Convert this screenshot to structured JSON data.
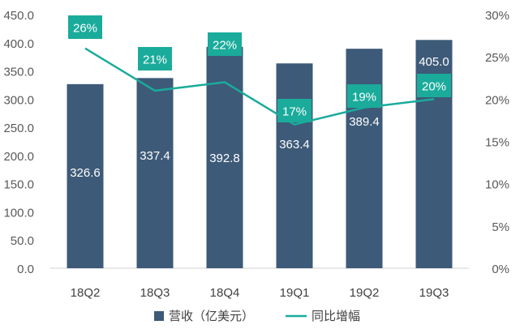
{
  "chart_data": {
    "type": "bar",
    "categories": [
      "18Q2",
      "18Q3",
      "18Q4",
      "19Q1",
      "19Q2",
      "19Q3"
    ],
    "series": [
      {
        "name": "营收（亿美元）",
        "type": "bar",
        "axis": "left",
        "color": "#3d5a78",
        "values": [
          326.6,
          337.4,
          392.8,
          363.4,
          389.4,
          405.0
        ],
        "labels": [
          "326.6",
          "337.4",
          "392.8",
          "363.4",
          "389.4",
          "405.0"
        ]
      },
      {
        "name": "同比增幅",
        "type": "line",
        "axis": "right",
        "color": "#1aab9b",
        "values": [
          26,
          21,
          22,
          17,
          19,
          20
        ],
        "labels": [
          "26%",
          "21%",
          "22%",
          "17%",
          "19%",
          "20%"
        ]
      }
    ],
    "y_left": {
      "range": [
        0,
        450
      ],
      "ticks": [
        0,
        50,
        100,
        150,
        200,
        250,
        300,
        350,
        400,
        450
      ],
      "tick_labels": [
        "0.0",
        "50.0",
        "100.0",
        "150.0",
        "200.0",
        "250.0",
        "300.0",
        "350.0",
        "400.0",
        "450.0"
      ]
    },
    "y_right": {
      "range": [
        0,
        30
      ],
      "ticks": [
        0,
        5,
        10,
        15,
        20,
        25,
        30
      ],
      "tick_labels": [
        "0%",
        "5%",
        "10%",
        "15%",
        "20%",
        "25%",
        "30%"
      ]
    },
    "legend_position": "bottom",
    "grid": false,
    "title": "",
    "xlabel": "",
    "ylabel": ""
  }
}
